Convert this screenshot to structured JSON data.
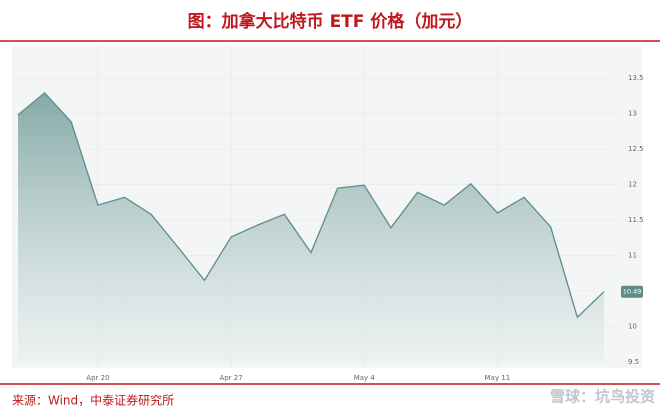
{
  "chart_data": {
    "type": "area",
    "title": "图：加拿大比特币 ETF 价格（加元）",
    "source": "来源：Wind，中泰证券研究所",
    "watermark": "雪球：坑鸟投资",
    "categories": [
      null,
      null,
      null,
      "Apr 20",
      null,
      null,
      null,
      null,
      "Apr 27",
      null,
      null,
      null,
      null,
      "May 4",
      null,
      null,
      null,
      null,
      "May 11",
      null,
      null,
      null,
      null
    ],
    "series": [
      {
        "color": "#5e8c89",
        "values": [
          12.98,
          13.29,
          12.88,
          11.71,
          11.82,
          11.58,
          11.12,
          10.65,
          11.26,
          11.43,
          11.58,
          11.04,
          11.95,
          11.99,
          11.39,
          11.89,
          11.71,
          12.01,
          11.6,
          11.82,
          11.4,
          10.13,
          10.49
        ]
      }
    ],
    "ylim": [
      9.5,
      13.8
    ],
    "yticks": [
      9.5,
      10,
      10.5,
      11,
      11.5,
      12,
      12.5,
      13,
      13.5
    ],
    "grid": true
  }
}
